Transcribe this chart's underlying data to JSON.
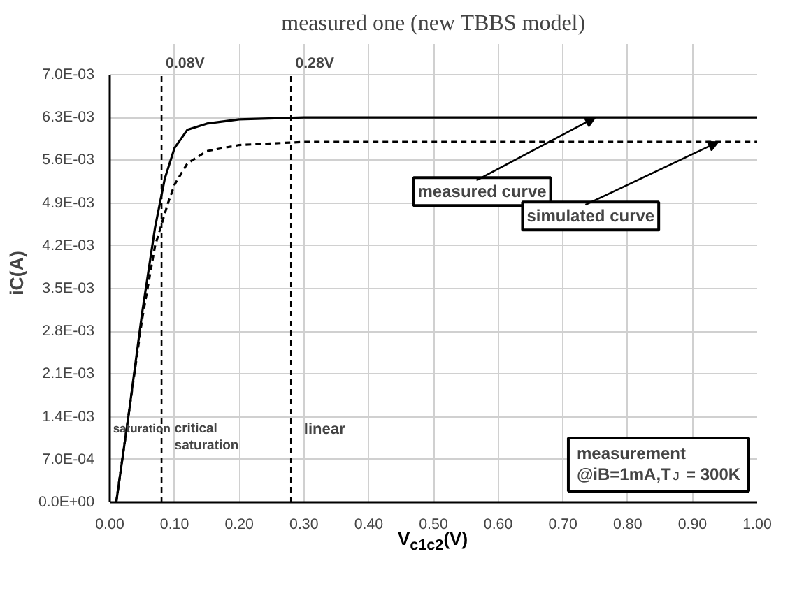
{
  "chart_data": {
    "type": "line",
    "title": "measured one (new TBBS model)",
    "xlabel": "V$_{c1c2}$(V)",
    "ylabel": "iC(A)",
    "xlim": [
      0,
      1.0
    ],
    "xticks": [
      {
        "value": 0,
        "label": "0.00"
      },
      {
        "value": 0.1,
        "label": "0.10"
      },
      {
        "value": 0.2,
        "label": "0.20"
      },
      {
        "value": 0.3,
        "label": "0.30"
      },
      {
        "value": 0.4,
        "label": "0.40"
      },
      {
        "value": 0.5,
        "label": "0.50"
      },
      {
        "value": 0.6,
        "label": "0.60"
      },
      {
        "value": 0.7,
        "label": "0.70"
      },
      {
        "value": 0.8,
        "label": "0.80"
      },
      {
        "value": 0.9,
        "label": "0.90"
      },
      {
        "value": 1.0,
        "label": "1.00"
      }
    ],
    "ylim": [
      0,
      0.007
    ],
    "yticks": [
      {
        "value": 0,
        "label": "0.0E+00"
      },
      {
        "value": 0.0007,
        "label": "7.0E-04"
      },
      {
        "value": 0.0014,
        "label": "1.4E-03"
      },
      {
        "value": 0.0021,
        "label": "2.1E-03"
      },
      {
        "value": 0.0028,
        "label": "2.8E-03"
      },
      {
        "value": 0.0035,
        "label": "3.5E-03"
      },
      {
        "value": 0.0042,
        "label": "4.2E-03"
      },
      {
        "value": 0.0049,
        "label": "4.9E-03"
      },
      {
        "value": 0.0056,
        "label": "5.6E-03"
      },
      {
        "value": 0.0063,
        "label": "6.3E-03"
      },
      {
        "value": 0.007,
        "label": "7.0E-03"
      }
    ],
    "grid": true,
    "marker": "none",
    "series": [
      {
        "color": "#000000",
        "line_style": "solid",
        "x": [
          0.01,
          0.03,
          0.05,
          0.07,
          0.085,
          0.1,
          0.12,
          0.15,
          0.2,
          0.3,
          0.5,
          1.0
        ],
        "values": [
          0,
          0.0015,
          0.0031,
          0.0045,
          0.0053,
          0.0058,
          0.0061,
          0.0062,
          0.00627,
          0.0063,
          0.0063,
          0.0063
        ]
      },
      {
        "color": "#000000",
        "line_style": "dashed",
        "x": [
          0.01,
          0.03,
          0.05,
          0.07,
          0.09,
          0.1,
          0.12,
          0.15,
          0.2,
          0.3,
          1.0
        ],
        "values": [
          0,
          0.0015,
          0.003,
          0.0042,
          0.0049,
          0.0052,
          0.00555,
          0.00575,
          0.00585,
          0.0059,
          0.0059
        ]
      }
    ],
    "ref_lines": [
      {
        "axis": "x",
        "value": 0.08,
        "label": "0.08V",
        "line_style": "dashed"
      },
      {
        "axis": "x",
        "value": 0.28,
        "label": "0.28V",
        "line_style": "dashed"
      }
    ],
    "annotations": [
      {
        "text": "measured curve",
        "x": 0.75,
        "y": 0.0063
      },
      {
        "text": "simulated curve",
        "x": 0.94,
        "y": 0.0059
      },
      "saturation",
      "critical\nsaturation",
      "linear",
      "measurement\n@iB=1mA,T$_{J}$ = 300K"
    ]
  }
}
